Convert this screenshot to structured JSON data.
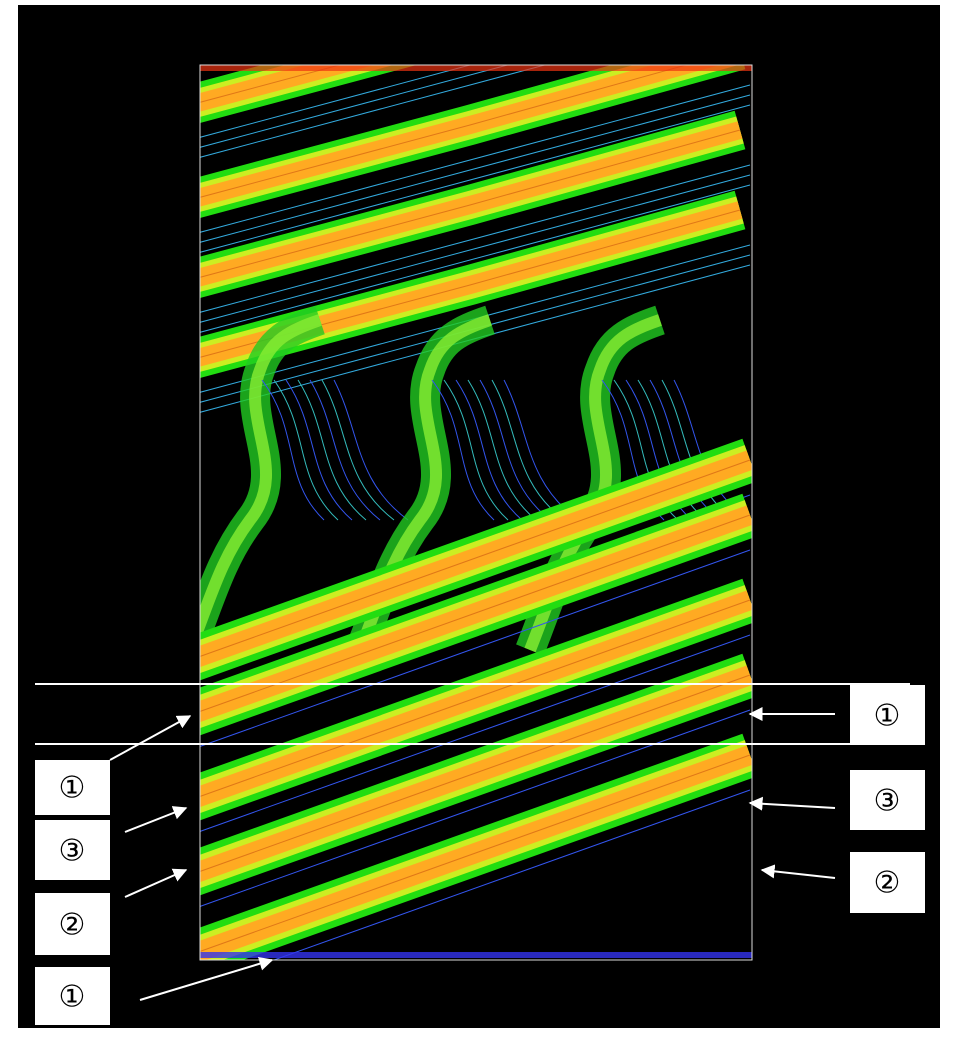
{
  "left_labels": [
    "①",
    "③",
    "②",
    "①"
  ],
  "right_labels": [
    "①",
    "③",
    "②"
  ]
}
